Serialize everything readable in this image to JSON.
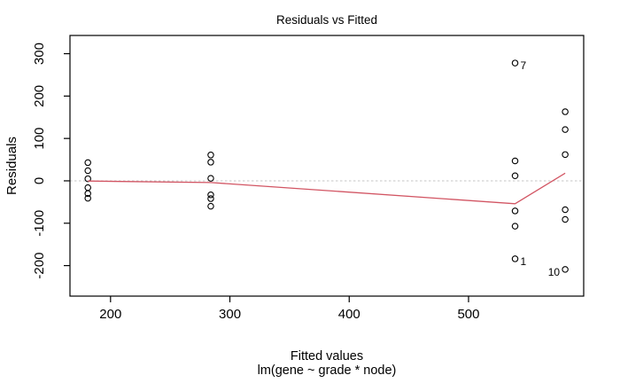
{
  "chart_data": {
    "type": "scatter",
    "title": "Residuals vs Fitted",
    "xlabel": "Fitted values",
    "subtitle": "lm(gene ~ grade * node)",
    "ylabel": "Residuals",
    "xlim": [
      166,
      596.5
    ],
    "ylim": [
      -272,
      343
    ],
    "x_ticks": [
      200,
      300,
      400,
      500
    ],
    "y_ticks": [
      300,
      200,
      100,
      0,
      -100,
      -200
    ],
    "grid": false,
    "legend": "none",
    "point_style": "open-circle",
    "point_color": "#000000",
    "zero_line": {
      "y": 0,
      "style": "dashed",
      "color": "#c6c6c6"
    },
    "smoother": {
      "color": "#d25563",
      "points": [
        [
          181,
          -0.5
        ],
        [
          284,
          -4
        ],
        [
          539,
          -54
        ],
        [
          581,
          18
        ]
      ]
    },
    "points": [
      {
        "x": 181,
        "y": 43
      },
      {
        "x": 181,
        "y": 24
      },
      {
        "x": 181,
        "y": 5
      },
      {
        "x": 181,
        "y": -16
      },
      {
        "x": 181,
        "y": -30
      },
      {
        "x": 181,
        "y": -41
      },
      {
        "x": 284,
        "y": 61
      },
      {
        "x": 284,
        "y": 44
      },
      {
        "x": 284,
        "y": 6
      },
      {
        "x": 284,
        "y": -33
      },
      {
        "x": 284,
        "y": -42
      },
      {
        "x": 284,
        "y": -60
      },
      {
        "x": 539,
        "y": 278,
        "label": "7",
        "label_side": "right"
      },
      {
        "x": 539,
        "y": 47
      },
      {
        "x": 539,
        "y": 12
      },
      {
        "x": 539,
        "y": -71
      },
      {
        "x": 539,
        "y": -107
      },
      {
        "x": 539,
        "y": -184,
        "label": "1",
        "label_side": "right"
      },
      {
        "x": 581,
        "y": 163
      },
      {
        "x": 581,
        "y": 121
      },
      {
        "x": 581,
        "y": 62
      },
      {
        "x": 581,
        "y": -68
      },
      {
        "x": 581,
        "y": -91
      },
      {
        "x": 581,
        "y": -209,
        "label": "10",
        "label_side": "left"
      }
    ]
  }
}
